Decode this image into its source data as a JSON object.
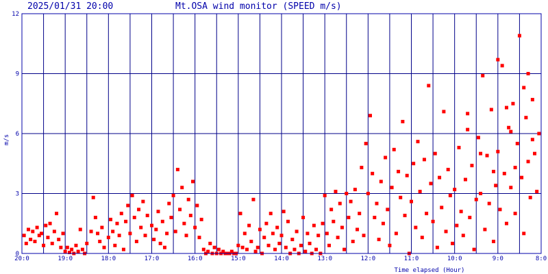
{
  "header": {
    "timestamp": "2025/01/31 20:00",
    "title": "Mt.OSA wind monitor (SPEED m/s)"
  },
  "colors": {
    "axis": "#0000aa",
    "grid": "#000088",
    "points": "#ff0000",
    "background": "#ffffff"
  },
  "chart_data": {
    "type": "scatter",
    "xlabel": "Time elapsed (Hour)",
    "ylabel": "m/s",
    "ylim": [
      0,
      12
    ],
    "y_ticks": [
      "0",
      "3",
      "6",
      "9",
      "12"
    ],
    "x_tick_labels": [
      "20:0",
      "19:0",
      "18:0",
      "17:0",
      "16:0",
      "15:0",
      "14:0",
      "13:0",
      "12:0",
      "11:0",
      "10:0",
      "9:0",
      "8:0"
    ],
    "x_note": "x = hours elapsed back from 20:00, axis runs 20:00 (left) to 08:00 (right)",
    "xlim": [
      0,
      12
    ],
    "grid": true,
    "series": [
      {
        "points": [
          [
            0.05,
            0.9
          ],
          [
            0.1,
            0.5
          ],
          [
            0.15,
            1.2
          ],
          [
            0.2,
            0.7
          ],
          [
            0.25,
            1.1
          ],
          [
            0.3,
            0.6
          ],
          [
            0.35,
            1.3
          ],
          [
            0.4,
            0.9
          ],
          [
            0.45,
            1.0
          ],
          [
            0.5,
            0.4
          ],
          [
            0.55,
            1.4
          ],
          [
            0.6,
            0.8
          ],
          [
            0.65,
            1.5
          ],
          [
            0.7,
            0.5
          ],
          [
            0.75,
            1.1
          ],
          [
            0.8,
            2.0
          ],
          [
            0.85,
            0.7
          ],
          [
            0.9,
            0.3
          ],
          [
            0.95,
            1.0
          ],
          [
            1.0,
            0.1
          ],
          [
            1.05,
            0.3
          ],
          [
            1.1,
            0.05
          ],
          [
            1.15,
            0.2
          ],
          [
            1.2,
            0.0
          ],
          [
            1.25,
            0.4
          ],
          [
            1.3,
            0.1
          ],
          [
            1.35,
            1.2
          ],
          [
            1.4,
            0.2
          ],
          [
            1.45,
            0.0
          ],
          [
            1.5,
            0.5
          ],
          [
            1.6,
            1.1
          ],
          [
            1.65,
            2.8
          ],
          [
            1.7,
            1.8
          ],
          [
            1.75,
            1.0
          ],
          [
            1.8,
            0.6
          ],
          [
            1.85,
            1.3
          ],
          [
            1.9,
            0.3
          ],
          [
            2.0,
            0.8
          ],
          [
            2.05,
            1.7
          ],
          [
            2.1,
            1.1
          ],
          [
            2.15,
            0.4
          ],
          [
            2.2,
            1.5
          ],
          [
            2.25,
            0.9
          ],
          [
            2.3,
            2.0
          ],
          [
            2.35,
            0.2
          ],
          [
            2.4,
            1.6
          ],
          [
            2.45,
            2.4
          ],
          [
            2.5,
            1.0
          ],
          [
            2.55,
            2.9
          ],
          [
            2.6,
            1.8
          ],
          [
            2.65,
            0.6
          ],
          [
            2.7,
            2.2
          ],
          [
            2.75,
            1.3
          ],
          [
            2.8,
            2.6
          ],
          [
            2.85,
            0.9
          ],
          [
            2.9,
            1.9
          ],
          [
            3.0,
            1.4
          ],
          [
            3.05,
            0.7
          ],
          [
            3.1,
            1.2
          ],
          [
            3.15,
            2.1
          ],
          [
            3.2,
            0.5
          ],
          [
            3.25,
            1.6
          ],
          [
            3.3,
            0.3
          ],
          [
            3.35,
            1.0
          ],
          [
            3.4,
            2.5
          ],
          [
            3.45,
            1.8
          ],
          [
            3.5,
            2.9
          ],
          [
            3.55,
            1.1
          ],
          [
            3.6,
            4.2
          ],
          [
            3.65,
            2.2
          ],
          [
            3.7,
            3.3
          ],
          [
            3.75,
            1.5
          ],
          [
            3.8,
            0.9
          ],
          [
            3.85,
            2.7
          ],
          [
            3.9,
            1.9
          ],
          [
            3.95,
            3.6
          ],
          [
            4.0,
            1.3
          ],
          [
            4.05,
            2.4
          ],
          [
            4.1,
            0.8
          ],
          [
            4.15,
            1.7
          ],
          [
            4.2,
            0.2
          ],
          [
            4.25,
            0.0
          ],
          [
            4.3,
            0.1
          ],
          [
            4.35,
            0.5
          ],
          [
            4.4,
            0.0
          ],
          [
            4.45,
            0.3
          ],
          [
            4.5,
            0.0
          ],
          [
            4.55,
            0.2
          ],
          [
            4.6,
            0.0
          ],
          [
            4.65,
            0.1
          ],
          [
            4.7,
            0.0
          ],
          [
            4.75,
            0.0
          ],
          [
            4.8,
            0.0
          ],
          [
            4.85,
            0.1
          ],
          [
            4.9,
            0.0
          ],
          [
            4.95,
            0.0
          ],
          [
            5.0,
            0.4
          ],
          [
            5.05,
            2.0
          ],
          [
            5.1,
            0.3
          ],
          [
            5.15,
            1.0
          ],
          [
            5.2,
            0.2
          ],
          [
            5.25,
            1.4
          ],
          [
            5.3,
            0.6
          ],
          [
            5.35,
            2.7
          ],
          [
            5.4,
            0.1
          ],
          [
            5.45,
            0.3
          ],
          [
            5.5,
            1.2
          ],
          [
            5.55,
            0.0
          ],
          [
            5.6,
            0.8
          ],
          [
            5.65,
            1.5
          ],
          [
            5.7,
            0.4
          ],
          [
            5.75,
            2.0
          ],
          [
            5.8,
            1.0
          ],
          [
            5.85,
            0.2
          ],
          [
            5.9,
            1.3
          ],
          [
            5.95,
            0.5
          ],
          [
            6.0,
            0.9
          ],
          [
            6.05,
            2.1
          ],
          [
            6.1,
            0.3
          ],
          [
            6.15,
            1.6
          ],
          [
            6.2,
            0.0
          ],
          [
            6.25,
            0.7
          ],
          [
            6.3,
            0.2
          ],
          [
            6.35,
            1.1
          ],
          [
            6.4,
            0.0
          ],
          [
            6.45,
            0.4
          ],
          [
            6.5,
            1.8
          ],
          [
            6.55,
            0.1
          ],
          [
            6.6,
            1.0
          ],
          [
            6.65,
            0.5
          ],
          [
            6.7,
            0.0
          ],
          [
            6.75,
            1.4
          ],
          [
            6.8,
            0.2
          ],
          [
            6.85,
            0.9
          ],
          [
            6.9,
            0.0
          ],
          [
            6.95,
            1.5
          ],
          [
            7.0,
            2.9
          ],
          [
            7.05,
            1.0
          ],
          [
            7.1,
            0.4
          ],
          [
            7.15,
            2.2
          ],
          [
            7.2,
            1.6
          ],
          [
            7.25,
            3.1
          ],
          [
            7.3,
            0.8
          ],
          [
            7.35,
            2.5
          ],
          [
            7.4,
            1.3
          ],
          [
            7.45,
            0.2
          ],
          [
            7.5,
            3.0
          ],
          [
            7.55,
            1.8
          ],
          [
            7.6,
            2.6
          ],
          [
            7.65,
            0.6
          ],
          [
            7.7,
            3.2
          ],
          [
            7.75,
            1.2
          ],
          [
            7.8,
            2.0
          ],
          [
            7.85,
            4.3
          ],
          [
            7.9,
            0.9
          ],
          [
            7.95,
            5.5
          ],
          [
            8.0,
            3.0
          ],
          [
            8.05,
            6.9
          ],
          [
            8.1,
            4.0
          ],
          [
            8.15,
            1.8
          ],
          [
            8.2,
            2.5
          ],
          [
            8.25,
            0.7
          ],
          [
            8.3,
            3.6
          ],
          [
            8.35,
            1.5
          ],
          [
            8.4,
            4.8
          ],
          [
            8.45,
            2.2
          ],
          [
            8.5,
            0.4
          ],
          [
            8.55,
            3.3
          ],
          [
            8.6,
            5.2
          ],
          [
            8.65,
            1.0
          ],
          [
            8.7,
            4.1
          ],
          [
            8.75,
            2.8
          ],
          [
            8.8,
            6.6
          ],
          [
            8.85,
            1.9
          ],
          [
            8.9,
            3.9
          ],
          [
            8.95,
            0.0
          ],
          [
            9.0,
            2.6
          ],
          [
            9.05,
            4.5
          ],
          [
            9.1,
            1.3
          ],
          [
            9.15,
            5.6
          ],
          [
            9.2,
            3.1
          ],
          [
            9.25,
            0.8
          ],
          [
            9.3,
            4.7
          ],
          [
            9.35,
            2.0
          ],
          [
            9.4,
            8.4
          ],
          [
            9.45,
            3.5
          ],
          [
            9.5,
            1.6
          ],
          [
            9.55,
            5.0
          ],
          [
            9.6,
            0.3
          ],
          [
            9.65,
            3.8
          ],
          [
            9.7,
            2.3
          ],
          [
            9.75,
            7.1
          ],
          [
            9.8,
            1.1
          ],
          [
            9.85,
            4.2
          ],
          [
            9.9,
            2.9
          ],
          [
            9.95,
            0.5
          ],
          [
            10.0,
            3.2
          ],
          [
            10.05,
            1.4
          ],
          [
            10.1,
            5.3
          ],
          [
            10.15,
            2.1
          ],
          [
            10.2,
            0.9
          ],
          [
            10.25,
            3.7
          ],
          [
            10.3,
            6.2
          ],
          [
            10.35,
            1.8
          ],
          [
            10.4,
            4.4
          ],
          [
            10.45,
            0.2
          ],
          [
            10.5,
            2.7
          ],
          [
            10.55,
            5.8
          ],
          [
            10.6,
            3.0
          ],
          [
            10.65,
            8.9
          ],
          [
            10.7,
            1.2
          ],
          [
            10.75,
            4.9
          ],
          [
            10.8,
            2.5
          ],
          [
            10.85,
            7.2
          ],
          [
            10.9,
            0.6
          ],
          [
            10.95,
            3.4
          ],
          [
            11.0,
            5.1
          ],
          [
            11.05,
            2.2
          ],
          [
            11.1,
            9.4
          ],
          [
            11.15,
            4.0
          ],
          [
            11.2,
            1.5
          ],
          [
            11.25,
            6.3
          ],
          [
            11.3,
            3.3
          ],
          [
            11.35,
            7.5
          ],
          [
            11.4,
            2.0
          ],
          [
            11.45,
            5.5
          ],
          [
            11.5,
            10.9
          ],
          [
            11.55,
            3.8
          ],
          [
            11.6,
            1.0
          ],
          [
            11.65,
            6.8
          ],
          [
            11.7,
            4.6
          ],
          [
            11.75,
            2.8
          ],
          [
            11.8,
            7.7
          ],
          [
            11.85,
            5.0
          ],
          [
            11.9,
            3.1
          ],
          [
            11.95,
            6.0
          ],
          [
            11.0,
            9.7
          ],
          [
            11.2,
            7.3
          ],
          [
            11.4,
            4.3
          ],
          [
            11.6,
            8.3
          ],
          [
            11.8,
            5.7
          ],
          [
            10.3,
            7.0
          ],
          [
            10.6,
            5.0
          ],
          [
            10.9,
            4.1
          ],
          [
            11.3,
            6.1
          ],
          [
            11.7,
            9.0
          ]
        ]
      }
    ]
  }
}
